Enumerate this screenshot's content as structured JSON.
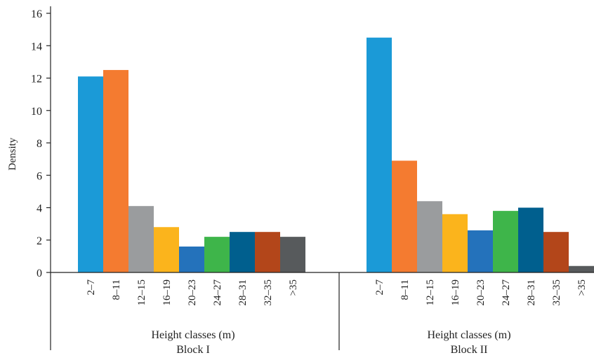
{
  "chart_data": {
    "type": "bar",
    "ylabel": "Density",
    "ylim": [
      0,
      16
    ],
    "yticks": [
      0,
      2,
      4,
      6,
      8,
      10,
      12,
      14,
      16
    ],
    "grid": false,
    "legend": "none",
    "categories": [
      "2–7",
      "8–11",
      "12–15",
      "16–19",
      "20–23",
      "24–27",
      "28–31",
      "32–35",
      ">35"
    ],
    "colors": [
      "#1b9ad7",
      "#f47b30",
      "#9a9c9e",
      "#fbb41c",
      "#2472bb",
      "#3eb54a",
      "#005f8e",
      "#b3461a",
      "#575a5c"
    ],
    "groups": [
      {
        "name": "Block I",
        "xlabel": "Height classes (m)",
        "values": [
          12.1,
          12.5,
          4.1,
          2.8,
          1.6,
          2.2,
          2.5,
          2.5,
          2.2
        ]
      },
      {
        "name": "Block II",
        "xlabel": "Height classes (m)",
        "values": [
          14.5,
          6.9,
          4.4,
          3.6,
          2.6,
          3.8,
          4.0,
          2.5,
          0.4
        ]
      }
    ]
  }
}
